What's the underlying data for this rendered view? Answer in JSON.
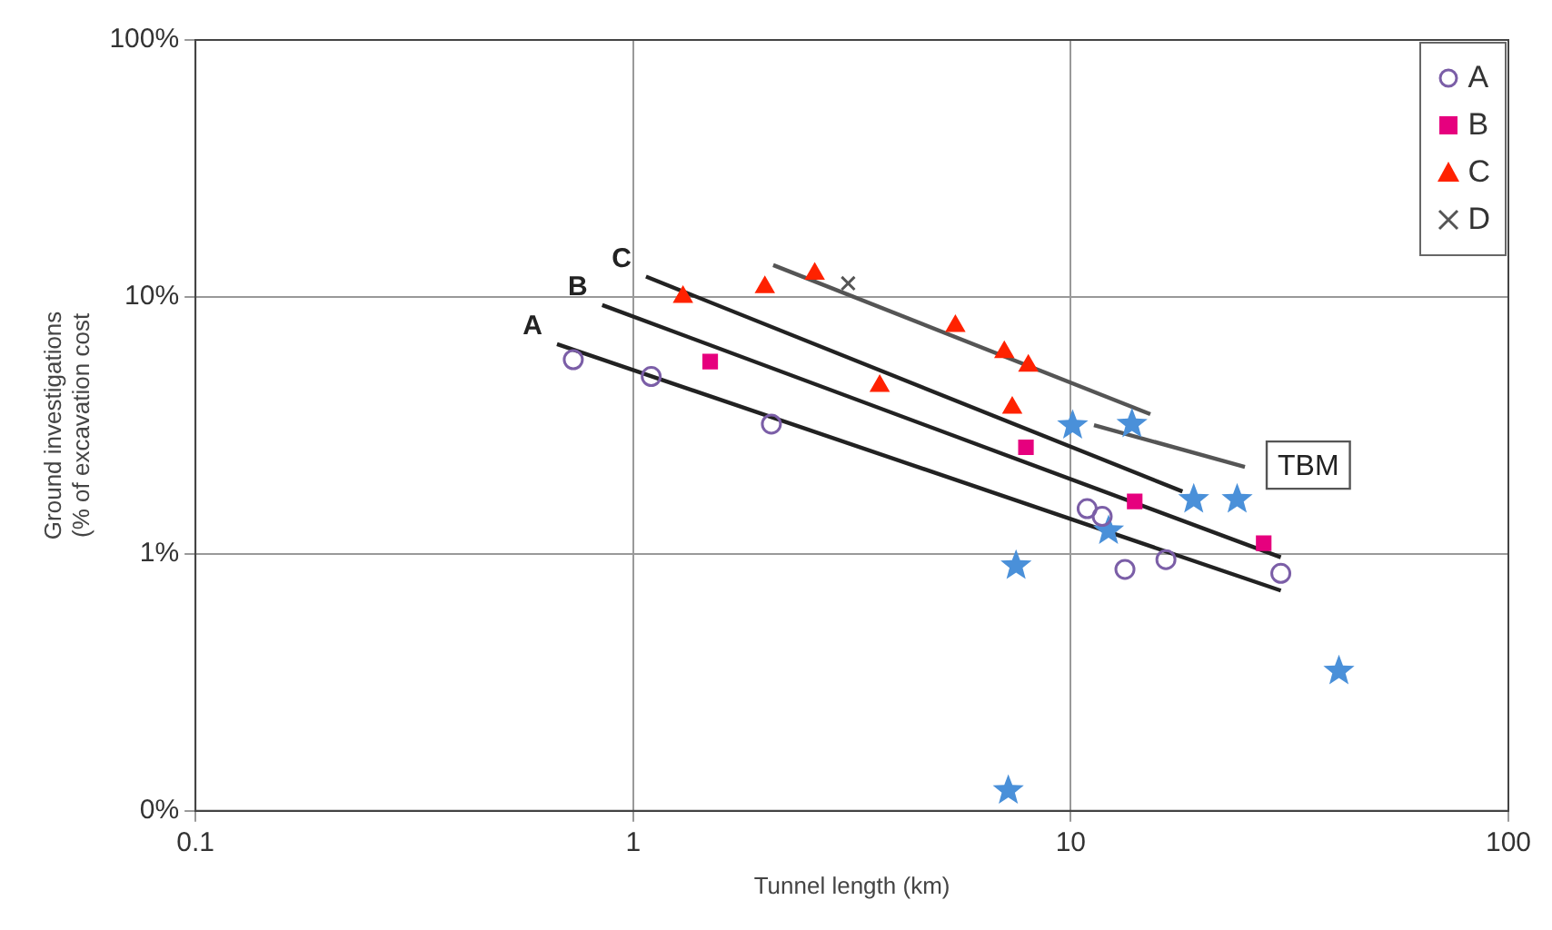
{
  "chart_data": {
    "type": "scatter",
    "xlabel": "Tunnel length (km)",
    "ylabel": "Ground investigations\n(% of excavation cost",
    "log": "xy",
    "grid": true,
    "legend": "top right",
    "xlim": [
      0.1,
      100
    ],
    "xticks": [
      0.1,
      1,
      10,
      100
    ],
    "ylim": [
      0.1,
      100
    ],
    "yticks": [
      {
        "value": 0.1,
        "label": "0%"
      },
      {
        "value": 1,
        "label": "1%"
      },
      {
        "value": 10,
        "label": "10%"
      },
      {
        "value": 100,
        "label": "100%"
      }
    ],
    "series": [
      {
        "name": "A",
        "marker": "circle",
        "color": "#7b5ea7",
        "x": [
          0.73,
          1.1,
          2.07,
          10.9,
          11.8,
          13.3,
          16.5,
          30.2
        ],
        "values": [
          5.7,
          4.9,
          3.2,
          1.5,
          1.4,
          0.87,
          0.95,
          0.84
        ]
      },
      {
        "name": "B",
        "marker": "square",
        "color": "#e6007e",
        "x": [
          1.5,
          7.9,
          14,
          27.6
        ],
        "values": [
          5.6,
          2.6,
          1.6,
          1.1
        ]
      },
      {
        "name": "C",
        "marker": "triangle",
        "color": "#ff2200",
        "x": [
          1.3,
          2.0,
          2.6,
          3.66,
          5.45,
          7.05,
          8.0,
          7.35
        ],
        "values": [
          10,
          10.9,
          12.3,
          4.5,
          7.7,
          6.1,
          5.4,
          3.7
        ]
      },
      {
        "name": "D",
        "marker": "cross",
        "color": "#555555",
        "x": [
          3.1
        ],
        "values": [
          11.3
        ]
      },
      {
        "marker": "star",
        "color": "#4a90d9",
        "x": [
          7.5,
          10.1,
          13.8,
          19.1,
          24,
          12.2,
          41,
          7.2
        ],
        "values": [
          0.9,
          3.16,
          3.2,
          1.63,
          1.63,
          1.23,
          0.35,
          0.12
        ]
      },
      {
        "type": "line",
        "marker": "none",
        "color": "#222222",
        "x": [
          0.67,
          30.2
        ],
        "values": [
          6.55,
          0.72
        ]
      },
      {
        "type": "line",
        "marker": "none",
        "color": "#222222",
        "x": [
          0.85,
          30.2
        ],
        "values": [
          9.3,
          0.97
        ]
      },
      {
        "type": "line",
        "marker": "none",
        "color": "#222222",
        "x": [
          1.07,
          18
        ],
        "values": [
          12.0,
          1.75
        ]
      },
      {
        "type": "line",
        "marker": "none",
        "color": "#555555",
        "x": [
          2.09,
          15.2
        ],
        "values": [
          13.3,
          3.5
        ]
      },
      {
        "type": "line",
        "marker": "none",
        "color": "#555555",
        "x": [
          11.3,
          25
        ],
        "values": [
          3.17,
          2.18
        ]
      }
    ],
    "annotations": [
      {
        "text": "A",
        "x": 0.67,
        "y": 6.55
      },
      {
        "text": "B",
        "x": 0.85,
        "y": 9.3
      },
      {
        "text": "C",
        "x": 1.07,
        "y": 12.0
      },
      {
        "text": "TBM",
        "x": 25,
        "y": 2.18
      }
    ]
  }
}
